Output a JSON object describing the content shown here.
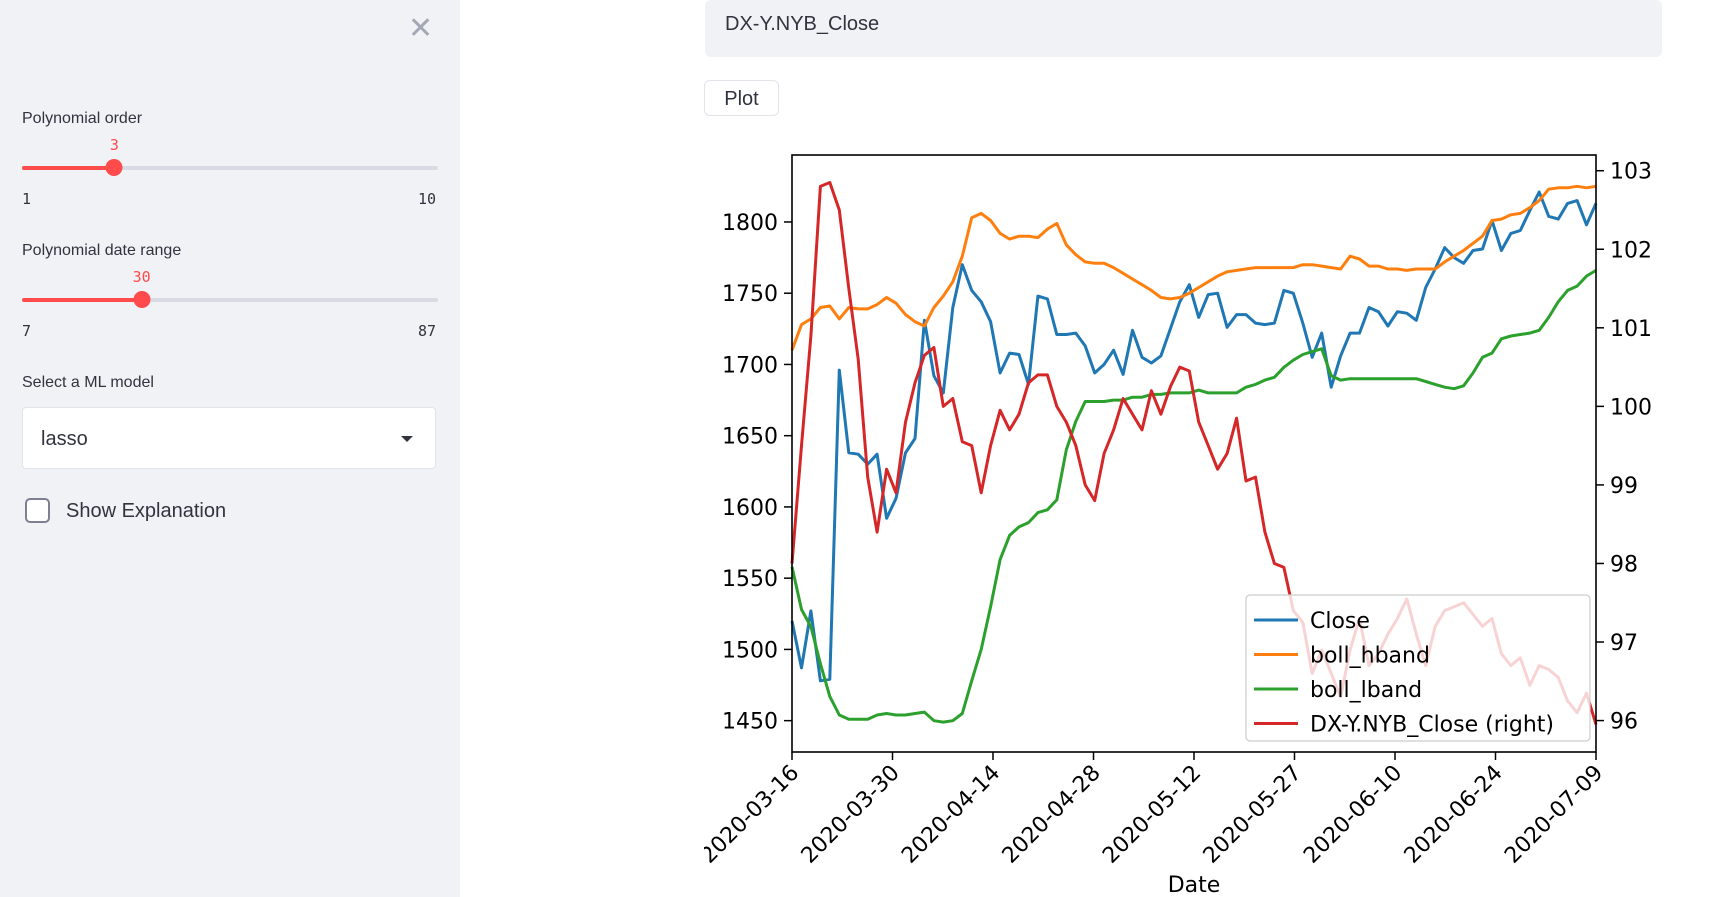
{
  "sidebar": {
    "close_icon": "close-icon",
    "poly_order": {
      "label": "Polynomial order",
      "value": 3,
      "min": 1,
      "max": 10,
      "value_text": "3",
      "min_text": "1",
      "max_text": "10"
    },
    "poly_range": {
      "label": "Polynomial date range",
      "value": 30,
      "min": 7,
      "max": 87,
      "value_text": "30",
      "min_text": "7",
      "max_text": "87"
    },
    "model": {
      "label": "Select a ML model",
      "value": "lasso"
    },
    "explanation": {
      "label": "Show Explanation",
      "checked": false
    }
  },
  "main": {
    "ticker_value": "DX-Y.NYB_Close",
    "plot_label": "Plot"
  },
  "colors": {
    "accent": "#ff4b4b",
    "close": "#1f77b4",
    "hband": "#ff7f0e",
    "lband": "#2ca02c",
    "dxy": "#d62728"
  },
  "chart_data": {
    "type": "line",
    "xlabel": "Date",
    "x_ticks": [
      "2020-03-16",
      "2020-03-30",
      "2020-04-14",
      "2020-04-28",
      "2020-05-12",
      "2020-05-27",
      "2020-06-10",
      "2020-06-24",
      "2020-07-09"
    ],
    "y_left": {
      "ticks": [
        "1450",
        "1500",
        "1550",
        "1600",
        "1650",
        "1700",
        "1750",
        "1800"
      ],
      "ylim": [
        1428,
        1847
      ]
    },
    "y_right": {
      "ticks": [
        "96",
        "97",
        "98",
        "99",
        "100",
        "101",
        "102",
        "103"
      ],
      "ylim": [
        95.6,
        103.2
      ]
    },
    "legend": {
      "location": "lower-right",
      "entries": [
        "Close",
        "boll_hband",
        "boll_lband",
        "DX-Y.NYB_Close (right)"
      ]
    },
    "x_positions_note_unused": "",
    "series": [
      {
        "name": "Close",
        "axis": "left",
        "color": "#1f77b4",
        "values": [
          1520,
          1487,
          1527,
          1478,
          1479,
          1696,
          1638,
          1637,
          1630,
          1637,
          1592,
          1606,
          1638,
          1648,
          1731,
          1692,
          1680,
          1740,
          1770,
          1752,
          1744,
          1730,
          1694,
          1708,
          1707,
          1686,
          1748,
          1746,
          1721,
          1721,
          1722,
          1713,
          1694,
          1700,
          1710,
          1693,
          1724,
          1705,
          1701,
          1706,
          1725,
          1744,
          1756,
          1733,
          1749,
          1750,
          1726,
          1735,
          1735,
          1729,
          1728,
          1729,
          1752,
          1750,
          1729,
          1705,
          1722,
          1684,
          1706,
          1722,
          1722,
          1740,
          1737,
          1727,
          1737,
          1736,
          1731,
          1754,
          1767,
          1782,
          1775,
          1771,
          1780,
          1781,
          1801,
          1780,
          1792,
          1794,
          1808,
          1821,
          1804,
          1802,
          1813,
          1815,
          1798,
          1813
        ]
      },
      {
        "name": "boll_hband",
        "axis": "left",
        "color": "#ff7f0e",
        "values": [
          1710,
          1728,
          1732,
          1740,
          1741,
          1732,
          1740,
          1739,
          1739,
          1742,
          1747,
          1743,
          1735,
          1730,
          1727,
          1740,
          1748,
          1758,
          1776,
          1803,
          1806,
          1801,
          1792,
          1788,
          1790,
          1790,
          1789,
          1795,
          1799,
          1784,
          1777,
          1772,
          1771,
          1771,
          1768,
          1764,
          1760,
          1756,
          1752,
          1747,
          1746,
          1747,
          1750,
          1754,
          1758,
          1762,
          1765,
          1766,
          1767,
          1768,
          1768,
          1768,
          1768,
          1768,
          1770,
          1770,
          1769,
          1768,
          1767,
          1776,
          1774,
          1769,
          1769,
          1767,
          1767,
          1766,
          1767,
          1767,
          1767,
          1772,
          1776,
          1780,
          1785,
          1790,
          1801,
          1802,
          1805,
          1806,
          1810,
          1815,
          1823,
          1824,
          1824,
          1825,
          1824,
          1825
        ]
      },
      {
        "name": "boll_lband",
        "axis": "left",
        "color": "#2ca02c",
        "values": [
          1558,
          1528,
          1516,
          1490,
          1467,
          1454,
          1451,
          1451,
          1451,
          1454,
          1455,
          1454,
          1454,
          1455,
          1456,
          1450,
          1449,
          1450,
          1455,
          1478,
          1500,
          1530,
          1563,
          1580,
          1586,
          1589,
          1596,
          1598,
          1605,
          1640,
          1660,
          1674,
          1674,
          1674,
          1675,
          1675,
          1677,
          1677,
          1679,
          1679,
          1680,
          1680,
          1680,
          1682,
          1680,
          1680,
          1680,
          1680,
          1684,
          1686,
          1689,
          1691,
          1698,
          1703,
          1707,
          1709,
          1711,
          1692,
          1689,
          1690,
          1690,
          1690,
          1690,
          1690,
          1690,
          1690,
          1690,
          1688,
          1686,
          1684,
          1683,
          1685,
          1694,
          1705,
          1708,
          1718,
          1720,
          1721,
          1722,
          1724,
          1733,
          1744,
          1752,
          1755,
          1762,
          1766
        ]
      },
      {
        "name": "DX-Y.NYB_Close (right)",
        "axis": "right",
        "color": "#d62728",
        "values": [
          98.0,
          99.5,
          100.9,
          102.8,
          102.85,
          102.5,
          101.5,
          100.6,
          99.1,
          98.4,
          99.2,
          98.9,
          99.8,
          100.3,
          100.65,
          100.75,
          100.0,
          100.1,
          99.55,
          99.5,
          98.9,
          99.5,
          99.95,
          99.7,
          99.9,
          100.3,
          100.4,
          100.4,
          100.0,
          99.8,
          99.5,
          99.0,
          98.8,
          99.4,
          99.7,
          100.1,
          99.9,
          99.7,
          100.2,
          99.9,
          100.25,
          100.5,
          100.45,
          99.8,
          99.5,
          99.2,
          99.4,
          99.85,
          99.05,
          99.1,
          98.4,
          98.0,
          97.95,
          97.4,
          97.25,
          96.6,
          96.9,
          96.6,
          96.3,
          96.9,
          97.3,
          96.7,
          96.85,
          97.1,
          97.3,
          97.55,
          97.1,
          96.7,
          97.2,
          97.4,
          97.45,
          97.5,
          97.35,
          97.2,
          97.3,
          96.85,
          96.7,
          96.8,
          96.45,
          96.7,
          96.65,
          96.55,
          96.25,
          96.1,
          96.35,
          95.95
        ]
      }
    ]
  }
}
